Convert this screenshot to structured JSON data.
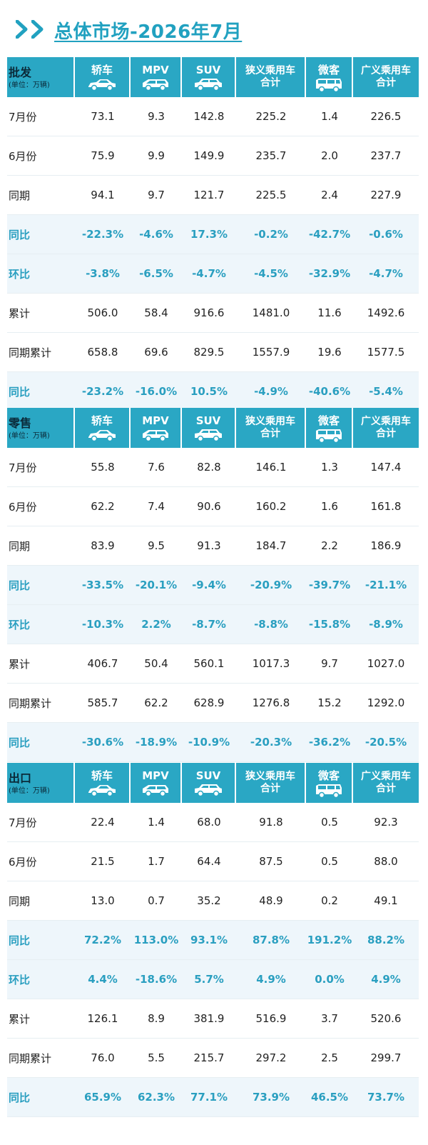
{
  "page": {
    "title": "总体市场-2026年7月"
  },
  "columns": [
    "轿车",
    "MPV",
    "SUV",
    "狭义乘用车合计",
    "微客",
    "广义乘用车合计"
  ],
  "columns_lines": [
    [
      "轿车"
    ],
    [
      "MPV"
    ],
    [
      "SUV"
    ],
    [
      "狭义乘用车",
      "合计"
    ],
    [
      "微客"
    ],
    [
      "广义乘用车",
      "合计"
    ]
  ],
  "column_icons": [
    "sedan-icon",
    "mpv-icon",
    "suv-icon",
    null,
    "microvan-icon",
    null
  ],
  "unit_label": "(单位：万辆)",
  "accent_color": "#2aa7c4",
  "pct_color": "#2a9fc0",
  "sections": [
    {
      "title": "批发",
      "rows": [
        {
          "label": "7月份",
          "values": [
            "73.1",
            "9.3",
            "142.8",
            "225.2",
            "1.4",
            "226.5"
          ],
          "pct": false
        },
        {
          "label": "6月份",
          "values": [
            "75.9",
            "9.9",
            "149.9",
            "235.7",
            "2.0",
            "237.7"
          ],
          "pct": false
        },
        {
          "label": "同期",
          "values": [
            "94.1",
            "9.7",
            "121.7",
            "225.5",
            "2.4",
            "227.9"
          ],
          "pct": false
        },
        {
          "label": "同比",
          "values": [
            "-22.3%",
            "-4.6%",
            "17.3%",
            "-0.2%",
            "-42.7%",
            "-0.6%"
          ],
          "pct": true
        },
        {
          "label": "环比",
          "values": [
            "-3.8%",
            "-6.5%",
            "-4.7%",
            "-4.5%",
            "-32.9%",
            "-4.7%"
          ],
          "pct": true
        },
        {
          "label": "累计",
          "values": [
            "506.0",
            "58.4",
            "916.6",
            "1481.0",
            "11.6",
            "1492.6"
          ],
          "pct": false
        },
        {
          "label": "同期累计",
          "values": [
            "658.8",
            "69.6",
            "829.5",
            "1557.9",
            "19.6",
            "1577.5"
          ],
          "pct": false
        },
        {
          "label": "同比",
          "values": [
            "-23.2%",
            "-16.0%",
            "10.5%",
            "-4.9%",
            "-40.6%",
            "-5.4%"
          ],
          "pct": true
        }
      ]
    },
    {
      "title": "零售",
      "rows": [
        {
          "label": "7月份",
          "values": [
            "55.8",
            "7.6",
            "82.8",
            "146.1",
            "1.3",
            "147.4"
          ],
          "pct": false
        },
        {
          "label": "6月份",
          "values": [
            "62.2",
            "7.4",
            "90.6",
            "160.2",
            "1.6",
            "161.8"
          ],
          "pct": false
        },
        {
          "label": "同期",
          "values": [
            "83.9",
            "9.5",
            "91.3",
            "184.7",
            "2.2",
            "186.9"
          ],
          "pct": false
        },
        {
          "label": "同比",
          "values": [
            "-33.5%",
            "-20.1%",
            "-9.4%",
            "-20.9%",
            "-39.7%",
            "-21.1%"
          ],
          "pct": true
        },
        {
          "label": "环比",
          "values": [
            "-10.3%",
            "2.2%",
            "-8.7%",
            "-8.8%",
            "-15.8%",
            "-8.9%"
          ],
          "pct": true
        },
        {
          "label": "累计",
          "values": [
            "406.7",
            "50.4",
            "560.1",
            "1017.3",
            "9.7",
            "1027.0"
          ],
          "pct": false
        },
        {
          "label": "同期累计",
          "values": [
            "585.7",
            "62.2",
            "628.9",
            "1276.8",
            "15.2",
            "1292.0"
          ],
          "pct": false
        },
        {
          "label": "同比",
          "values": [
            "-30.6%",
            "-18.9%",
            "-10.9%",
            "-20.3%",
            "-36.2%",
            "-20.5%"
          ],
          "pct": true
        }
      ]
    },
    {
      "title": "出口",
      "rows": [
        {
          "label": "7月份",
          "values": [
            "22.4",
            "1.4",
            "68.0",
            "91.8",
            "0.5",
            "92.3"
          ],
          "pct": false
        },
        {
          "label": "6月份",
          "values": [
            "21.5",
            "1.7",
            "64.4",
            "87.5",
            "0.5",
            "88.0"
          ],
          "pct": false
        },
        {
          "label": "同期",
          "values": [
            "13.0",
            "0.7",
            "35.2",
            "48.9",
            "0.2",
            "49.1"
          ],
          "pct": false
        },
        {
          "label": "同比",
          "values": [
            "72.2%",
            "113.0%",
            "93.1%",
            "87.8%",
            "191.2%",
            "88.2%"
          ],
          "pct": true
        },
        {
          "label": "环比",
          "values": [
            "4.4%",
            "-18.6%",
            "5.7%",
            "4.9%",
            "0.0%",
            "4.9%"
          ],
          "pct": true
        },
        {
          "label": "累计",
          "values": [
            "126.1",
            "8.9",
            "381.9",
            "516.9",
            "3.7",
            "520.6"
          ],
          "pct": false
        },
        {
          "label": "同期累计",
          "values": [
            "76.0",
            "5.5",
            "215.7",
            "297.2",
            "2.5",
            "299.7"
          ],
          "pct": false
        },
        {
          "label": "同比",
          "values": [
            "65.9%",
            "62.3%",
            "77.1%",
            "73.9%",
            "46.5%",
            "73.7%"
          ],
          "pct": true
        }
      ]
    }
  ]
}
